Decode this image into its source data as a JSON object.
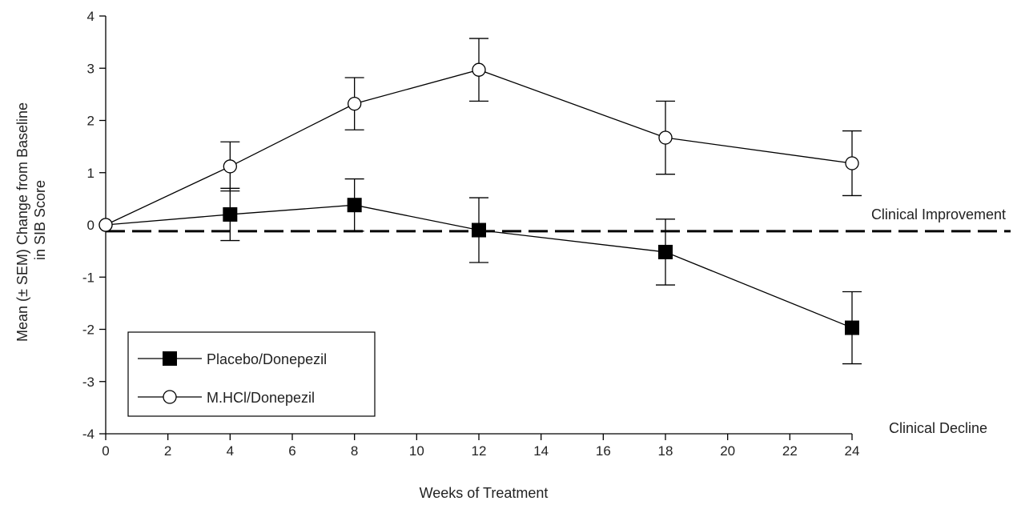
{
  "chart_data": {
    "type": "line",
    "title": "",
    "xlabel": "Weeks of Treatment",
    "ylabel": [
      "Mean (± SEM) Change from Baseline",
      "in SIB Score"
    ],
    "xlim": [
      0,
      24
    ],
    "ylim": [
      -4,
      4
    ],
    "xticks": [
      0,
      2,
      4,
      6,
      8,
      10,
      12,
      14,
      16,
      18,
      20,
      22,
      24
    ],
    "yticks": [
      -4,
      -3,
      -2,
      -1,
      0,
      1,
      2,
      3,
      4
    ],
    "grid": false,
    "legend_position": "lower-left",
    "reference_line": {
      "y": -0.12,
      "style": "dashed"
    },
    "annotations": [
      {
        "text": "Clinical Improvement",
        "x": 24,
        "y": 0.2,
        "anchor": "end-right"
      },
      {
        "text": "Clinical Decline",
        "x": 24,
        "y": -3.82,
        "anchor": "end-right"
      }
    ],
    "series": [
      {
        "name": "Placebo/Donepezil",
        "marker": "filled-square",
        "color": "#000000",
        "x": [
          0,
          4,
          8,
          12,
          18,
          24
        ],
        "y": [
          0,
          0.2,
          0.38,
          -0.1,
          -0.52,
          -1.97
        ],
        "sem": [
          0,
          0.5,
          0.5,
          0.62,
          0.63,
          0.69
        ]
      },
      {
        "name": "M.HCl/Donepezil",
        "marker": "open-circle",
        "color": "#000000",
        "x": [
          0,
          4,
          8,
          12,
          18,
          24
        ],
        "y": [
          0,
          1.12,
          2.32,
          2.97,
          1.67,
          1.18
        ],
        "sem": [
          0,
          0.47,
          0.5,
          0.6,
          0.7,
          0.62
        ]
      }
    ]
  }
}
